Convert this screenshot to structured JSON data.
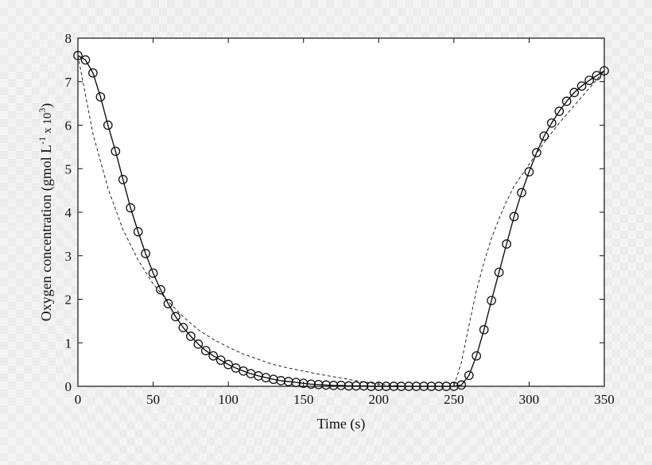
{
  "chart_data": {
    "type": "line",
    "title": "",
    "xlabel": "Time (s)",
    "ylabel_parts": [
      "Oxygen concentration (gmol L",
      "-1",
      " x 10",
      "3",
      ")"
    ],
    "xlim": [
      0,
      350
    ],
    "ylim": [
      0,
      8
    ],
    "xticks": [
      0,
      50,
      100,
      150,
      200,
      250,
      300,
      350
    ],
    "yticks": [
      0,
      1,
      2,
      3,
      4,
      5,
      6,
      7,
      8
    ],
    "grid": false,
    "legend": "none",
    "colors": {
      "line": "#111111",
      "axes": "#111111",
      "plot_bg": "#ffffff"
    },
    "series": [
      {
        "style": "solid-with-circles",
        "x": [
          0,
          5,
          10,
          15,
          20,
          25,
          30,
          35,
          40,
          45,
          50,
          55,
          60,
          65,
          70,
          75,
          80,
          85,
          90,
          95,
          100,
          105,
          110,
          115,
          120,
          125,
          130,
          135,
          140,
          145,
          150,
          155,
          160,
          165,
          170,
          175,
          180,
          185,
          190,
          195,
          200,
          205,
          210,
          215,
          220,
          225,
          230,
          235,
          240,
          245,
          250,
          255,
          260,
          265,
          270,
          275,
          280,
          285,
          290,
          295,
          300,
          305,
          310,
          315,
          320,
          325,
          330,
          335,
          340,
          345,
          350
        ],
        "y": [
          7.6,
          7.5,
          7.2,
          6.65,
          6.0,
          5.4,
          4.75,
          4.1,
          3.55,
          3.05,
          2.6,
          2.22,
          1.9,
          1.6,
          1.35,
          1.15,
          0.97,
          0.82,
          0.7,
          0.6,
          0.5,
          0.42,
          0.35,
          0.29,
          0.24,
          0.2,
          0.16,
          0.13,
          0.11,
          0.09,
          0.07,
          0.05,
          0.04,
          0.03,
          0.02,
          0.02,
          0.01,
          0.01,
          0.01,
          0.0,
          0.0,
          0.0,
          0.0,
          0.0,
          0.0,
          0.0,
          0.0,
          0.0,
          0.0,
          0.0,
          0.0,
          0.03,
          0.25,
          0.7,
          1.3,
          1.97,
          2.62,
          3.27,
          3.9,
          4.45,
          4.93,
          5.37,
          5.75,
          6.05,
          6.32,
          6.55,
          6.75,
          6.9,
          7.03,
          7.14,
          7.25
        ]
      },
      {
        "style": "dashed",
        "x": [
          0,
          10,
          20,
          30,
          40,
          50,
          60,
          70,
          80,
          90,
          100,
          110,
          120,
          130,
          140,
          150,
          160,
          170,
          180,
          190,
          200,
          210,
          220,
          230,
          240,
          250,
          255,
          260,
          265,
          270,
          275,
          280,
          285,
          290,
          295,
          300,
          310,
          320,
          330,
          340,
          350
        ],
        "y": [
          7.6,
          5.8,
          4.55,
          3.6,
          2.9,
          2.35,
          1.95,
          1.6,
          1.3,
          1.08,
          0.9,
          0.74,
          0.62,
          0.5,
          0.42,
          0.35,
          0.28,
          0.22,
          0.16,
          0.1,
          0.05,
          0.02,
          0.0,
          0.0,
          0.0,
          0.0,
          0.55,
          1.4,
          2.2,
          2.85,
          3.4,
          3.85,
          4.25,
          4.6,
          4.85,
          5.1,
          5.6,
          6.05,
          6.45,
          6.85,
          7.25
        ]
      }
    ]
  }
}
